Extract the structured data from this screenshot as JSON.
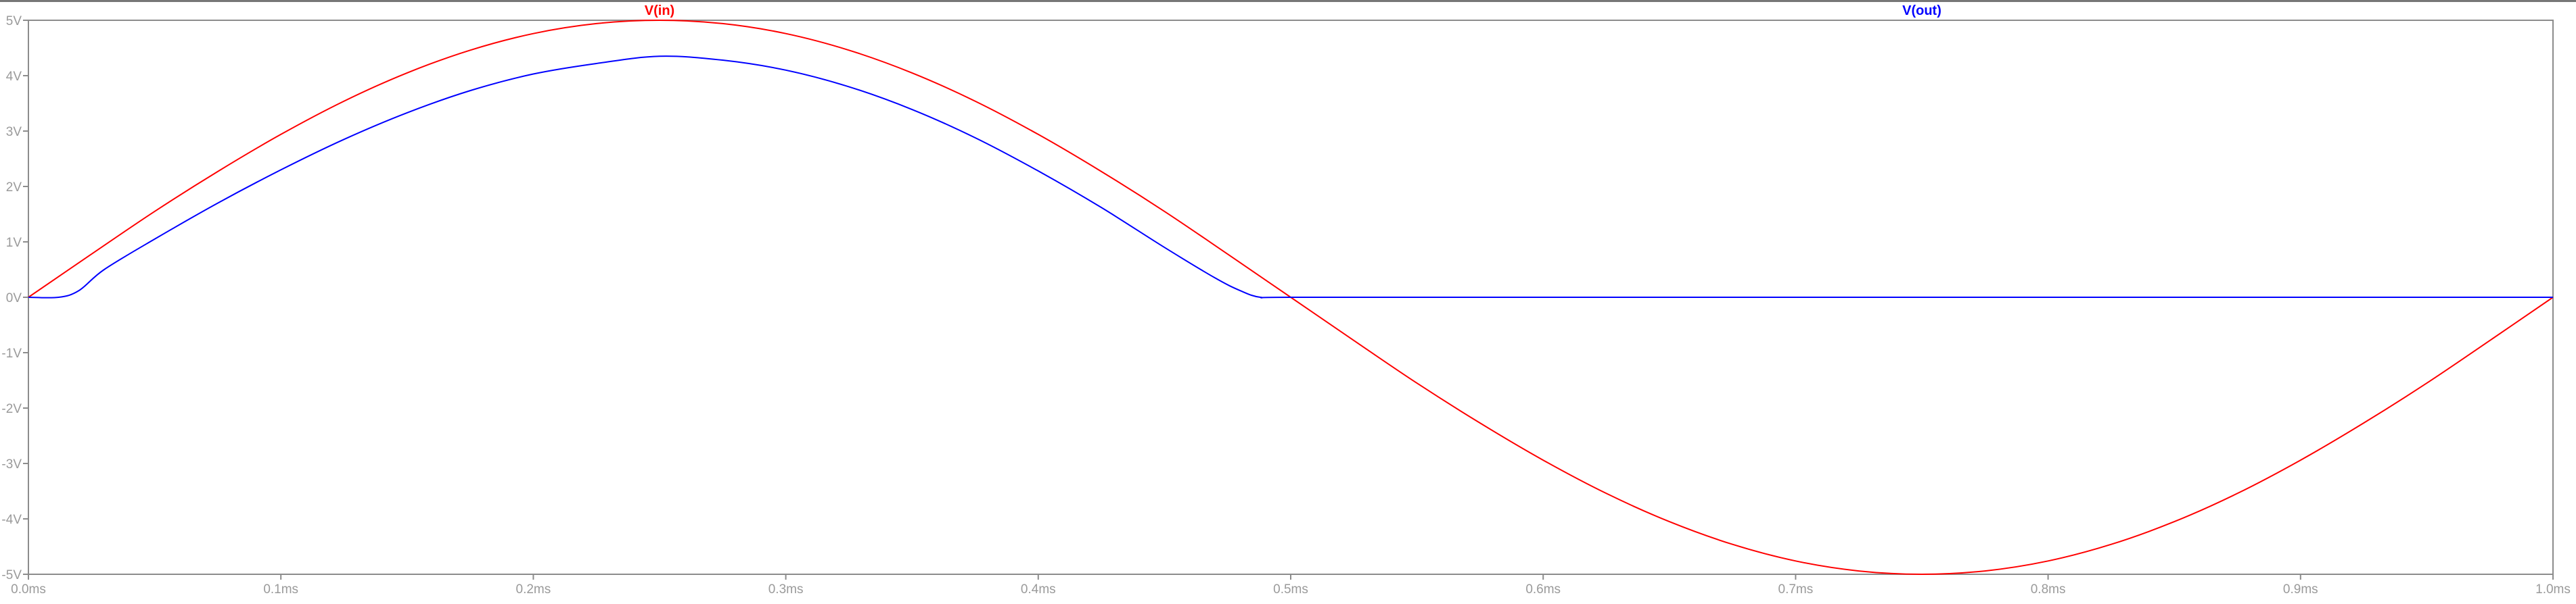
{
  "chart_data": {
    "type": "line",
    "title": "",
    "xlabel": "",
    "ylabel": "",
    "x_unit": "ms",
    "y_unit": "V",
    "xlim": [
      0,
      1.0
    ],
    "ylim": [
      -5,
      5
    ],
    "grid": false,
    "x_ticks": [
      0.0,
      0.1,
      0.2,
      0.3,
      0.4,
      0.5,
      0.6,
      0.7,
      0.8,
      0.9,
      1.0
    ],
    "x_tick_labels": [
      "0.0ms",
      "0.1ms",
      "0.2ms",
      "0.3ms",
      "0.4ms",
      "0.5ms",
      "0.6ms",
      "0.7ms",
      "0.8ms",
      "0.9ms",
      "1.0ms"
    ],
    "y_ticks": [
      5,
      4,
      3,
      2,
      1,
      0,
      -1,
      -2,
      -3,
      -4,
      -5
    ],
    "y_tick_labels": [
      "5V",
      "4V",
      "3V",
      "2V",
      "1V",
      "0V",
      "-1V",
      "-2V",
      "-3V",
      "-4V",
      "-5V"
    ],
    "legend_placement": "top, above plot",
    "series": [
      {
        "name": "V(in)",
        "color": "#ff0000",
        "x": [
          0.0,
          0.025,
          0.05,
          0.075,
          0.1,
          0.125,
          0.15,
          0.175,
          0.2,
          0.225,
          0.25,
          0.275,
          0.3,
          0.325,
          0.35,
          0.375,
          0.4,
          0.425,
          0.45,
          0.475,
          0.5,
          0.525,
          0.55,
          0.575,
          0.6,
          0.625,
          0.65,
          0.675,
          0.7,
          0.725,
          0.75,
          0.775,
          0.8,
          0.825,
          0.85,
          0.875,
          0.9,
          0.925,
          0.95,
          0.975,
          1.0
        ],
        "y": [
          0.0,
          0.78,
          1.55,
          2.27,
          2.94,
          3.54,
          4.05,
          4.46,
          4.76,
          4.94,
          5.0,
          4.94,
          4.76,
          4.46,
          4.05,
          3.54,
          2.94,
          2.27,
          1.55,
          0.78,
          0.0,
          -0.78,
          -1.55,
          -2.27,
          -2.94,
          -3.54,
          -4.05,
          -4.46,
          -4.76,
          -4.94,
          -5.0,
          -4.94,
          -4.76,
          -4.46,
          -4.05,
          -3.54,
          -2.94,
          -2.27,
          -1.55,
          -0.78,
          0.0
        ]
      },
      {
        "name": "V(out)",
        "color": "#0000ff",
        "x": [
          0.0,
          0.012,
          0.02,
          0.03,
          0.05,
          0.075,
          0.1,
          0.125,
          0.15,
          0.175,
          0.2,
          0.225,
          0.25,
          0.275,
          0.3,
          0.325,
          0.35,
          0.375,
          0.4,
          0.425,
          0.45,
          0.47,
          0.48,
          0.488,
          0.5,
          0.6,
          0.7,
          0.8,
          0.9,
          1.0
        ],
        "y": [
          0.0,
          0.0,
          0.12,
          0.5,
          1.05,
          1.7,
          2.3,
          2.85,
          3.33,
          3.73,
          4.03,
          4.22,
          4.35,
          4.28,
          4.1,
          3.8,
          3.39,
          2.88,
          2.28,
          1.62,
          0.9,
          0.35,
          0.12,
          0.0,
          0.0,
          0.0,
          0.0,
          0.0,
          0.0,
          0.0
        ]
      }
    ]
  },
  "colors": {
    "axis": "#8c8c8c",
    "tick_text": "#9a9a9a",
    "top_border": "#777777",
    "background": "#ffffff"
  }
}
